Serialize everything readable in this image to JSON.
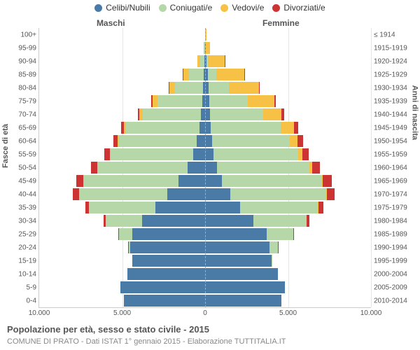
{
  "colors": {
    "celibi": "#4a7aa6",
    "coniugati": "#b6d7a8",
    "vedovi": "#f6c145",
    "divorziati": "#cc3333",
    "grid": "#e5e5e5",
    "center": "#aaaaaa",
    "text": "#555555"
  },
  "legend": [
    {
      "key": "celibi",
      "label": "Celibi/Nubili"
    },
    {
      "key": "coniugati",
      "label": "Coniugati/e"
    },
    {
      "key": "vedovi",
      "label": "Vedovi/e"
    },
    {
      "key": "divorziati",
      "label": "Divorziati/e"
    }
  ],
  "gender_labels": {
    "male": "Maschi",
    "female": "Femmine"
  },
  "y_titles": {
    "left": "Fasce di età",
    "right": "Anni di nascita"
  },
  "x_axis": {
    "max_each_side": 10000,
    "ticks": [
      {
        "pos": -10000,
        "label": "10.000"
      },
      {
        "pos": -5000,
        "label": "5.000"
      },
      {
        "pos": 0,
        "label": "0"
      },
      {
        "pos": 5000,
        "label": "5.000"
      },
      {
        "pos": 10000,
        "label": "10.000"
      }
    ]
  },
  "footer": {
    "title": "Popolazione per età, sesso e stato civile - 2015",
    "subtitle": "COMUNE DI PRATO - Dati ISTAT 1° gennaio 2015 - Elaborazione TUTTITALIA.IT"
  },
  "age_bands": [
    {
      "age": "100+",
      "birth": "≤ 1914",
      "male": {
        "celibi": 3,
        "coniugati": 0,
        "vedovi": 5,
        "divorziati": 0
      },
      "female": {
        "celibi": 10,
        "coniugati": 0,
        "vedovi": 60,
        "divorziati": 0
      }
    },
    {
      "age": "95-99",
      "birth": "1915-1919",
      "male": {
        "celibi": 10,
        "coniugati": 20,
        "vedovi": 40,
        "divorziati": 0
      },
      "female": {
        "celibi": 30,
        "coniugati": 10,
        "vedovi": 260,
        "divorziati": 0
      }
    },
    {
      "age": "90-94",
      "birth": "1920-1924",
      "male": {
        "celibi": 30,
        "coniugati": 250,
        "vedovi": 200,
        "divorziati": 5
      },
      "female": {
        "celibi": 90,
        "coniugati": 100,
        "vedovi": 1000,
        "divorziati": 10
      }
    },
    {
      "age": "85-89",
      "birth": "1925-1929",
      "male": {
        "celibi": 70,
        "coniugati": 900,
        "vedovi": 350,
        "divorziati": 20
      },
      "female": {
        "celibi": 180,
        "coniugati": 500,
        "vedovi": 1700,
        "divorziati": 30
      }
    },
    {
      "age": "80-84",
      "birth": "1930-1934",
      "male": {
        "celibi": 120,
        "coniugati": 1700,
        "vedovi": 350,
        "divorziati": 40
      },
      "female": {
        "celibi": 230,
        "coniugati": 1200,
        "vedovi": 1800,
        "divorziati": 60
      }
    },
    {
      "age": "75-79",
      "birth": "1935-1939",
      "male": {
        "celibi": 180,
        "coniugati": 2700,
        "vedovi": 300,
        "divorziati": 70
      },
      "female": {
        "celibi": 260,
        "coniugati": 2300,
        "vedovi": 1600,
        "divorziati": 90
      }
    },
    {
      "age": "70-74",
      "birth": "1940-1944",
      "male": {
        "celibi": 240,
        "coniugati": 3500,
        "vedovi": 220,
        "divorziati": 110
      },
      "female": {
        "celibi": 300,
        "coniugati": 3200,
        "vedovi": 1100,
        "divorziati": 150
      }
    },
    {
      "age": "65-69",
      "birth": "1945-1949",
      "male": {
        "celibi": 350,
        "coniugati": 4400,
        "vedovi": 150,
        "divorziati": 180
      },
      "female": {
        "celibi": 350,
        "coniugati": 4200,
        "vedovi": 800,
        "divorziati": 250
      }
    },
    {
      "age": "60-64",
      "birth": "1950-1954",
      "male": {
        "celibi": 500,
        "coniugati": 4700,
        "vedovi": 90,
        "divorziati": 250
      },
      "female": {
        "celibi": 420,
        "coniugati": 4700,
        "vedovi": 450,
        "divorziati": 330
      }
    },
    {
      "age": "55-59",
      "birth": "1955-1959",
      "male": {
        "celibi": 700,
        "coniugati": 5000,
        "vedovi": 60,
        "divorziati": 320
      },
      "female": {
        "celibi": 500,
        "coniugati": 5100,
        "vedovi": 260,
        "divorziati": 400
      }
    },
    {
      "age": "50-54",
      "birth": "1960-1964",
      "male": {
        "celibi": 1050,
        "coniugati": 5400,
        "vedovi": 40,
        "divorziati": 400
      },
      "female": {
        "celibi": 700,
        "coniugati": 5600,
        "vedovi": 160,
        "divorziati": 480
      }
    },
    {
      "age": "45-49",
      "birth": "1965-1969",
      "male": {
        "celibi": 1600,
        "coniugati": 5700,
        "vedovi": 25,
        "divorziati": 420
      },
      "female": {
        "celibi": 1000,
        "coniugati": 6000,
        "vedovi": 100,
        "divorziati": 520
      }
    },
    {
      "age": "40-44",
      "birth": "1970-1974",
      "male": {
        "celibi": 2300,
        "coniugati": 5300,
        "vedovi": 15,
        "divorziati": 360
      },
      "female": {
        "celibi": 1500,
        "coniugati": 5800,
        "vedovi": 50,
        "divorziati": 450
      }
    },
    {
      "age": "35-39",
      "birth": "1975-1979",
      "male": {
        "celibi": 3000,
        "coniugati": 4000,
        "vedovi": 8,
        "divorziati": 220
      },
      "female": {
        "celibi": 2100,
        "coniugati": 4700,
        "vedovi": 25,
        "divorziati": 300
      }
    },
    {
      "age": "30-34",
      "birth": "1980-1984",
      "male": {
        "celibi": 3800,
        "coniugati": 2200,
        "vedovi": 3,
        "divorziati": 100
      },
      "female": {
        "celibi": 2900,
        "coniugati": 3200,
        "vedovi": 10,
        "divorziati": 160
      }
    },
    {
      "age": "25-29",
      "birth": "1985-1989",
      "male": {
        "celibi": 4400,
        "coniugati": 800,
        "vedovi": 0,
        "divorziati": 30
      },
      "female": {
        "celibi": 3700,
        "coniugati": 1600,
        "vedovi": 3,
        "divorziati": 50
      }
    },
    {
      "age": "20-24",
      "birth": "1990-1994",
      "male": {
        "celibi": 4500,
        "coniugati": 120,
        "vedovi": 0,
        "divorziati": 5
      },
      "female": {
        "celibi": 3900,
        "coniugati": 500,
        "vedovi": 0,
        "divorziati": 10
      }
    },
    {
      "age": "15-19",
      "birth": "1995-1999",
      "male": {
        "celibi": 4400,
        "coniugati": 5,
        "vedovi": 0,
        "divorziati": 0
      },
      "female": {
        "celibi": 4000,
        "coniugati": 40,
        "vedovi": 0,
        "divorziati": 0
      }
    },
    {
      "age": "10-14",
      "birth": "2000-2004",
      "male": {
        "celibi": 4700,
        "coniugati": 0,
        "vedovi": 0,
        "divorziati": 0
      },
      "female": {
        "celibi": 4400,
        "coniugati": 0,
        "vedovi": 0,
        "divorziati": 0
      }
    },
    {
      "age": "5-9",
      "birth": "2005-2009",
      "male": {
        "celibi": 5100,
        "coniugati": 0,
        "vedovi": 0,
        "divorziati": 0
      },
      "female": {
        "celibi": 4800,
        "coniugati": 0,
        "vedovi": 0,
        "divorziati": 0
      }
    },
    {
      "age": "0-4",
      "birth": "2010-2014",
      "male": {
        "celibi": 4900,
        "coniugati": 0,
        "vedovi": 0,
        "divorziati": 0
      },
      "female": {
        "celibi": 4600,
        "coniugati": 0,
        "vedovi": 0,
        "divorziati": 0
      }
    }
  ]
}
